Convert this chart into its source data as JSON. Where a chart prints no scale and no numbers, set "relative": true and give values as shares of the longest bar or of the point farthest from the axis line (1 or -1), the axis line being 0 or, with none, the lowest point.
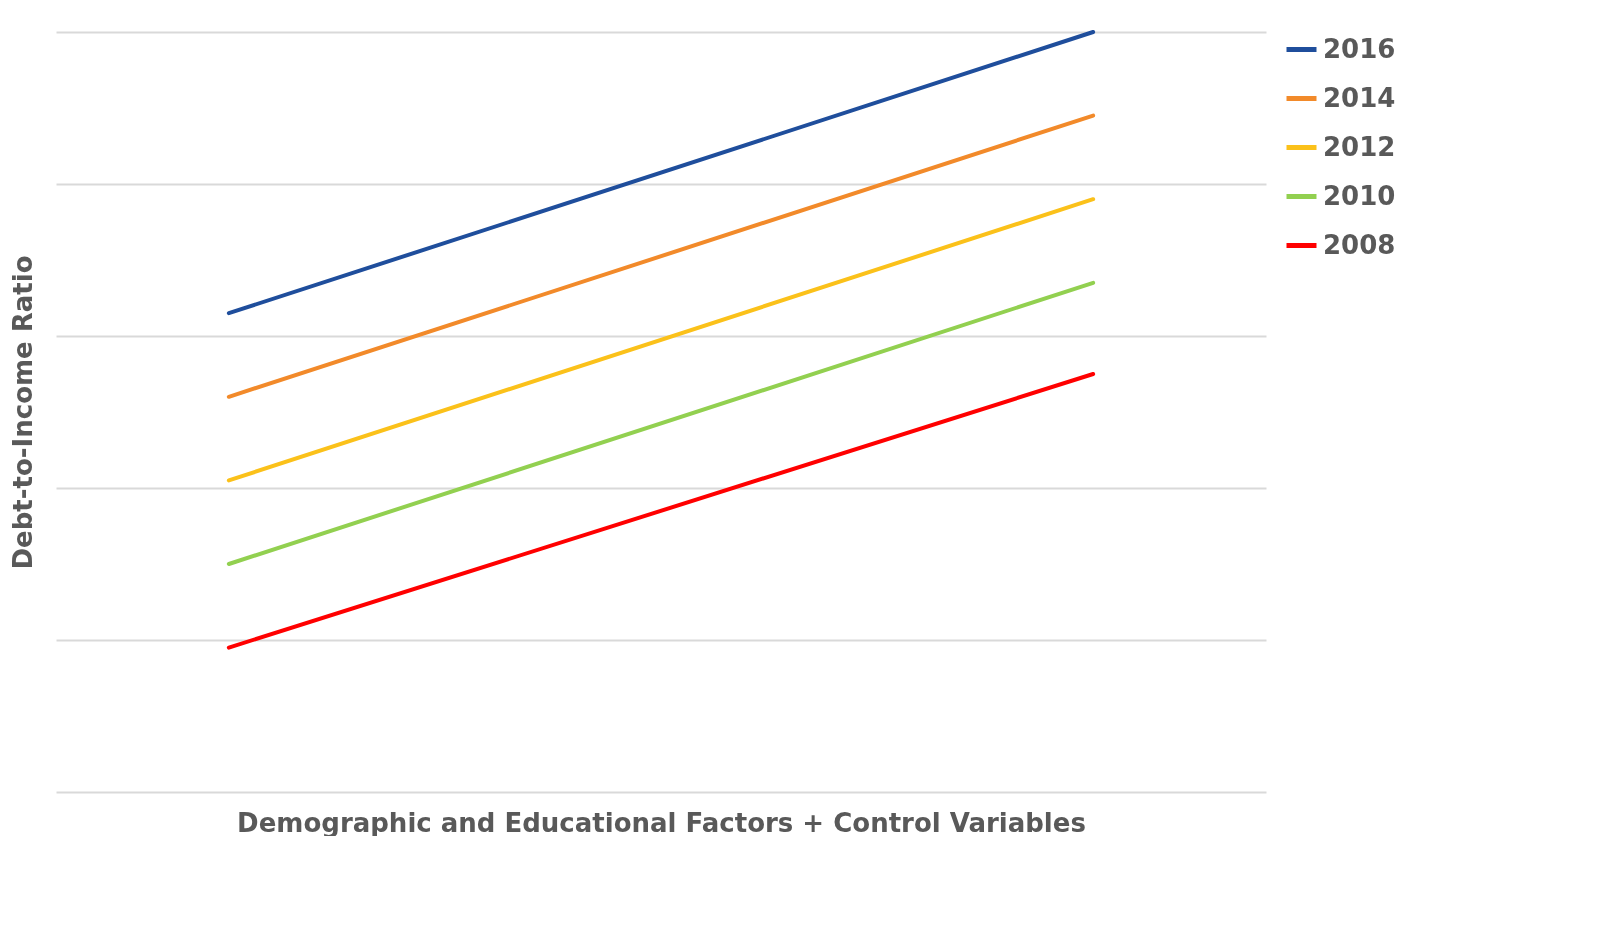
{
  "chart_data": {
    "type": "line",
    "relative": true,
    "xlabel": "Demographic and Educational Factors + Control Variables",
    "ylabel": "Debt-to-Income Ratio",
    "categories": [
      null,
      null
    ],
    "grid": "y",
    "legend": "right",
    "marker": "none",
    "line_style": "solid",
    "series": [
      {
        "name": "2016",
        "color": "#1f4e9c",
        "values": [
          0.63,
          1.0
        ]
      },
      {
        "name": "2014",
        "color": "#f28a2a",
        "values": [
          0.52,
          0.89
        ]
      },
      {
        "name": "2012",
        "color": "#fbc11a",
        "values": [
          0.41,
          0.78
        ]
      },
      {
        "name": "2010",
        "color": "#92d050",
        "values": [
          0.3,
          0.67
        ]
      },
      {
        "name": "2008",
        "color": "#ff0000",
        "values": [
          0.19,
          0.55
        ]
      }
    ]
  }
}
